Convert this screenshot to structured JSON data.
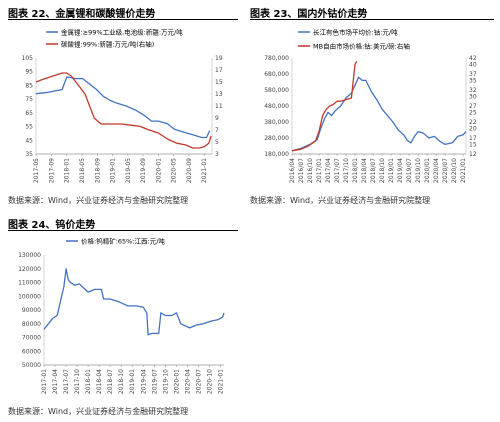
{
  "panels": {
    "p22": {
      "title": "图表 22、金属锂和碳酸锂价走势",
      "source": "数据来源：Wind，兴业证券经济与金融研究院整理"
    },
    "p23": {
      "title": "图表 23、国内外钴价走势",
      "source": "数据来源：Wind，兴业证券经济与金融研究院整理"
    },
    "p24": {
      "title": "图表 24、钨价走势",
      "source": "数据来源：Wind，兴业证券经济与金融研究院整理"
    }
  },
  "chart_data": [
    {
      "id": "c22",
      "type": "line",
      "legend_position": "top",
      "ylim": [
        35,
        105
      ],
      "yticks": [
        35,
        45,
        55,
        65,
        75,
        85,
        95,
        105
      ],
      "y2lim": [
        3,
        19
      ],
      "y2ticks": [
        3,
        5,
        7,
        9,
        11,
        13,
        15,
        17,
        19
      ],
      "xlim": [
        2017.33,
        2021.17
      ],
      "xticks": [
        "2017-05",
        "2017-09",
        "2018-01",
        "2018-05",
        "2018-09",
        "2019-01",
        "2019-05",
        "2019-09",
        "2020-01",
        "2020-05",
        "2020-09",
        "2021-01"
      ],
      "series": [
        {
          "name": "金属锂:≥99%工业级,电池级:新疆:万元/吨",
          "color": "#4472C4",
          "axis": "left",
          "x": [
            2017.33,
            2017.6,
            2017.9,
            2018.0,
            2018.05,
            2018.2,
            2018.35,
            2018.5,
            2018.65,
            2018.8,
            2018.95,
            2019.1,
            2019.3,
            2019.5,
            2019.7,
            2019.85,
            2020.0,
            2020.2,
            2020.35,
            2020.55,
            2020.75,
            2020.95,
            2021.05,
            2021.12
          ],
          "values": [
            79,
            80,
            82,
            91,
            91,
            90,
            90,
            86,
            82,
            77,
            74,
            72,
            70,
            67,
            63,
            59,
            59,
            57,
            53,
            51,
            49,
            47,
            47,
            52
          ]
        },
        {
          "name": "碳酸锂:99%:新疆:万元/吨(右轴)",
          "color": "#C0392B",
          "axis": "right",
          "x": [
            2017.33,
            2017.5,
            2017.7,
            2017.9,
            2018.0,
            2018.1,
            2018.2,
            2018.3,
            2018.4,
            2018.5,
            2018.6,
            2018.75,
            2019.0,
            2019.2,
            2019.4,
            2019.6,
            2019.8,
            2020.0,
            2020.2,
            2020.4,
            2020.6,
            2020.75,
            2020.9,
            2021.0,
            2021.1,
            2021.15
          ],
          "values": [
            15,
            15.5,
            16,
            16.5,
            16.5,
            16,
            15,
            14,
            13,
            11,
            9,
            8,
            8,
            8,
            7.8,
            7.6,
            7,
            6.5,
            5.5,
            4.8,
            4.5,
            4.0,
            4.0,
            4.2,
            4.8,
            6
          ]
        }
      ]
    },
    {
      "id": "c23",
      "type": "line",
      "legend_position": "top",
      "ylim": [
        180000,
        780000
      ],
      "yticks": [
        "180,000",
        "280,000",
        "380,000",
        "480,000",
        "580,000",
        "680,000",
        "780,000"
      ],
      "ytick_values": [
        180000,
        280000,
        380000,
        480000,
        580000,
        680000,
        780000
      ],
      "y2lim": [
        12,
        42
      ],
      "y2ticks": [
        12,
        15,
        17,
        20,
        22,
        25,
        27,
        30,
        32,
        35,
        37,
        40,
        42
      ],
      "xlim": [
        2016.25,
        2021.08
      ],
      "xticks": [
        "2016/04",
        "2016/07",
        "2016/10",
        "2017/01",
        "2017/04",
        "2017/07",
        "2017/10",
        "2018/01",
        "2018/04",
        "2018/07",
        "2018/10",
        "2019/01",
        "2019/04",
        "2019/07",
        "2019/10",
        "2020/01",
        "2020/04",
        "2020/07",
        "2020/10",
        "2021/01"
      ],
      "series": [
        {
          "name": "长江有色市场平均价:钴:元/吨",
          "color": "#4472C4",
          "axis": "left",
          "x": [
            2016.25,
            2016.5,
            2016.75,
            2016.95,
            2017.05,
            2017.15,
            2017.25,
            2017.35,
            2017.45,
            2017.6,
            2017.75,
            2017.9,
            2018.0,
            2018.1,
            2018.2,
            2018.3,
            2018.45,
            2018.6,
            2018.75,
            2018.9,
            2019.05,
            2019.2,
            2019.35,
            2019.45,
            2019.55,
            2019.65,
            2019.75,
            2019.9,
            2020.05,
            2020.2,
            2020.35,
            2020.5,
            2020.7,
            2020.85,
            2021.0,
            2021.08
          ],
          "values": [
            200000,
            215000,
            240000,
            270000,
            340000,
            400000,
            440000,
            420000,
            450000,
            480000,
            530000,
            560000,
            610000,
            660000,
            640000,
            640000,
            570000,
            520000,
            460000,
            420000,
            380000,
            330000,
            300000,
            265000,
            250000,
            290000,
            320000,
            310000,
            280000,
            290000,
            260000,
            240000,
            250000,
            290000,
            300000,
            320000
          ]
        },
        {
          "name": "MB自由市场价格:钴:美元/磅:右轴",
          "color": "#C0392B",
          "axis": "right",
          "x": [
            2016.25,
            2016.5,
            2016.7,
            2016.9,
            2017.0,
            2017.1,
            2017.2,
            2017.3,
            2017.4,
            2017.5,
            2017.6,
            2017.75,
            2017.9,
            2018.0,
            2018.05
          ],
          "values": [
            13,
            13.5,
            14.5,
            16,
            19,
            24,
            26,
            27,
            27.5,
            28.5,
            28.5,
            29,
            29.5,
            40,
            41
          ]
        }
      ]
    },
    {
      "id": "c24",
      "type": "line",
      "legend_position": "top",
      "ylim": [
        50000,
        130000
      ],
      "yticks": [
        50000,
        60000,
        70000,
        80000,
        90000,
        100000,
        110000,
        120000,
        130000
      ],
      "xlim": [
        2017.0,
        2021.08
      ],
      "xticks": [
        "2017-01",
        "2017-04",
        "2017-07",
        "2017-10",
        "2018-01",
        "2018-04",
        "2018-07",
        "2018-10",
        "2019-01",
        "2019-04",
        "2019-07",
        "2019-10",
        "2020-01",
        "2020-04",
        "2020-07",
        "2020-10",
        "2021-01"
      ],
      "series": [
        {
          "name": "价格:钨精矿:65%:江西:元/吨",
          "color": "#4472C4",
          "axis": "left",
          "x": [
            2017.0,
            2017.1,
            2017.2,
            2017.3,
            2017.4,
            2017.45,
            2017.5,
            2017.55,
            2017.6,
            2017.7,
            2017.8,
            2017.9,
            2018.0,
            2018.15,
            2018.3,
            2018.35,
            2018.5,
            2018.7,
            2018.9,
            2019.1,
            2019.25,
            2019.33,
            2019.36,
            2019.45,
            2019.6,
            2019.65,
            2019.75,
            2019.9,
            2020.0,
            2020.1,
            2020.3,
            2020.45,
            2020.6,
            2020.8,
            2020.95,
            2021.05,
            2021.08
          ],
          "values": [
            76000,
            80000,
            84000,
            86000,
            100000,
            107000,
            120000,
            112000,
            110000,
            108000,
            109000,
            106000,
            103000,
            105000,
            105000,
            98000,
            98000,
            96000,
            93000,
            93000,
            92000,
            88000,
            72000,
            73000,
            73000,
            88000,
            86000,
            86000,
            88000,
            80000,
            77000,
            79000,
            80000,
            82000,
            83000,
            85000,
            88000
          ]
        }
      ]
    }
  ]
}
